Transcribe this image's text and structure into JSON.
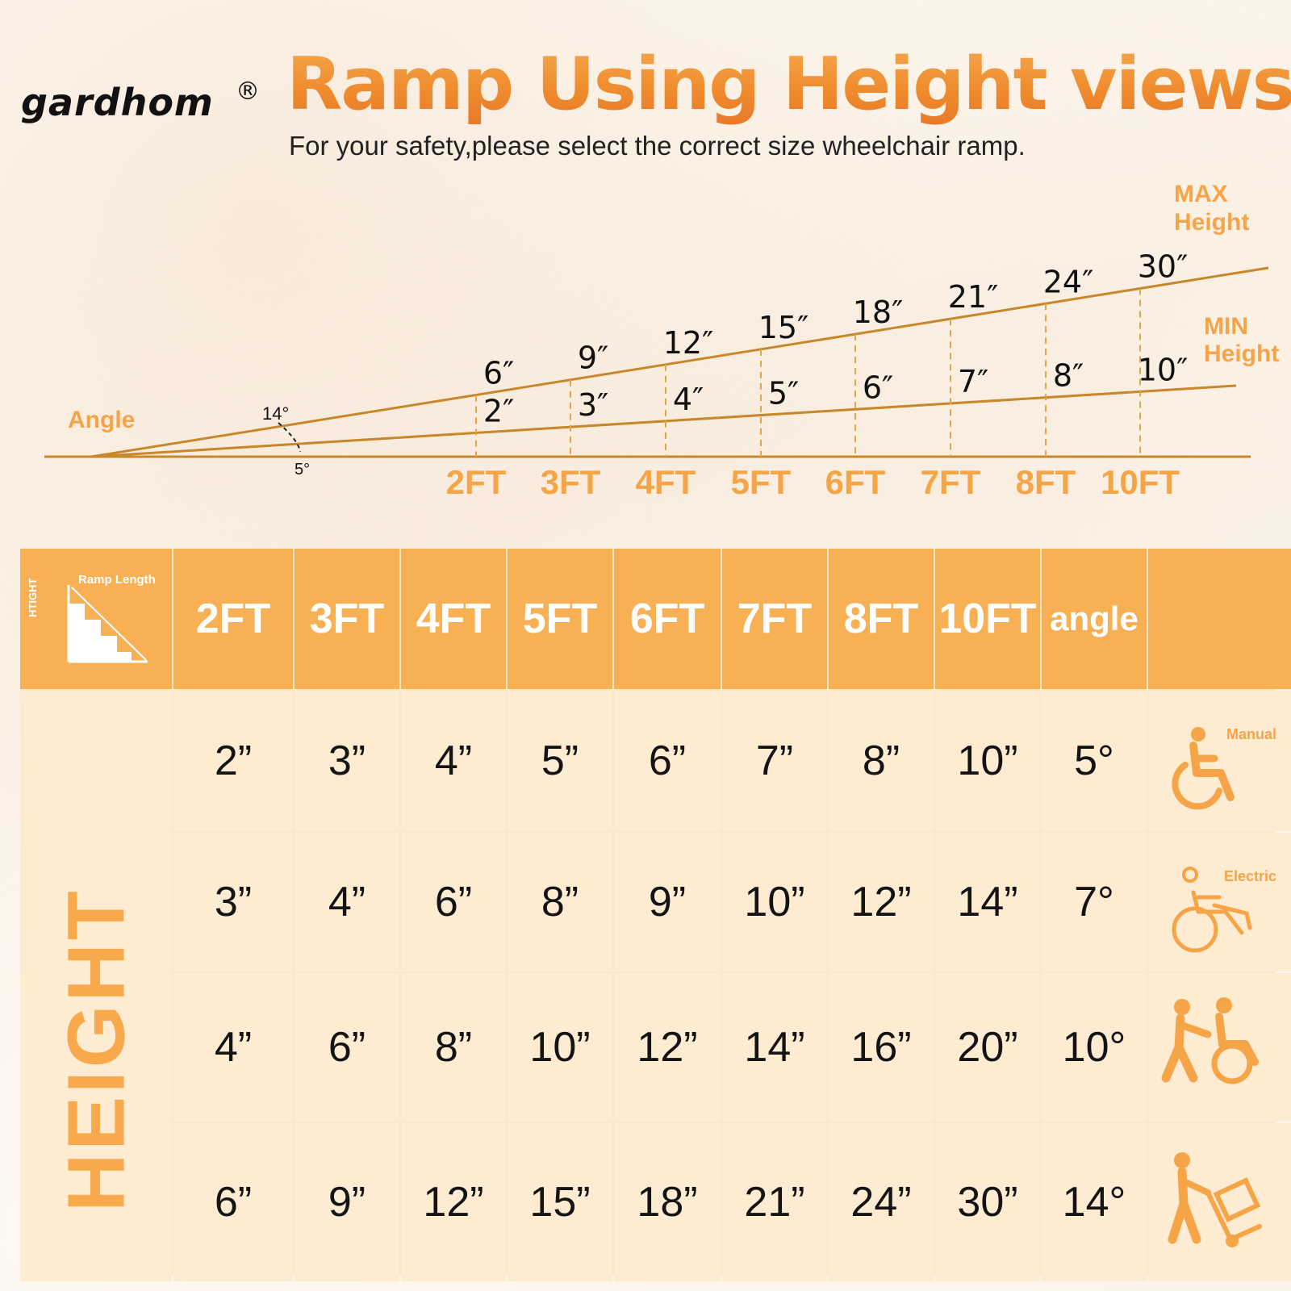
{
  "brand": {
    "name": "gardhom",
    "reg": "®"
  },
  "header": {
    "title": "Ramp Using Height views",
    "subtitle": "For your safety,please select the correct size wheelchair ramp."
  },
  "colors": {
    "accent": "#f8b055",
    "line": "#c8872b",
    "tint": "#fdebd2",
    "label": "#f5a548"
  },
  "chart_data": {
    "type": "line",
    "x": [
      "2FT",
      "3FT",
      "4FT",
      "5FT",
      "6FT",
      "7FT",
      "8FT",
      "10FT"
    ],
    "series": [
      {
        "name": "MAX Height",
        "values": [
          6,
          9,
          12,
          15,
          18,
          21,
          24,
          30
        ],
        "labels": [
          "6″",
          "9″",
          "12″",
          "15″",
          "18″",
          "21″",
          "24″",
          "30″"
        ]
      },
      {
        "name": "MIN Height",
        "values": [
          2,
          3,
          4,
          5,
          6,
          7,
          8,
          10
        ],
        "labels": [
          "2″",
          "3″",
          "4″",
          "5″",
          "6″",
          "7″",
          "8″",
          "10″"
        ]
      }
    ],
    "angle_label": "Angle",
    "angle_max": "14°",
    "angle_min": "5°",
    "max_label": [
      "MAX",
      "Height"
    ],
    "min_label": [
      "MIN",
      "Height"
    ]
  },
  "table": {
    "corner_length_label": "Ramp Length",
    "corner_height_label": "HTIGHT",
    "side_label": "HEIGHT",
    "columns": [
      "2FT",
      "3FT",
      "4FT",
      "5FT",
      "6FT",
      "7FT",
      "8FT",
      "10FT",
      "angle"
    ],
    "rows": [
      {
        "cells": [
          "2”",
          "3”",
          "4”",
          "5”",
          "6”",
          "7”",
          "8”",
          "10”",
          "5°"
        ],
        "tag": "Manual",
        "icon": "manual-wheelchair-icon"
      },
      {
        "cells": [
          "3”",
          "4”",
          "6”",
          "8”",
          "9”",
          "10”",
          "12”",
          "14”",
          "7°"
        ],
        "tag": "Electric",
        "icon": "electric-wheelchair-icon"
      },
      {
        "cells": [
          "4”",
          "6”",
          "8”",
          "10”",
          "12”",
          "14”",
          "16”",
          "20”",
          "10°"
        ],
        "tag": "",
        "icon": "assisted-wheelchair-icon"
      },
      {
        "cells": [
          "6”",
          "9”",
          "12”",
          "15”",
          "18”",
          "21”",
          "24”",
          "30”",
          "14°"
        ],
        "tag": "",
        "icon": "hand-truck-icon"
      }
    ]
  }
}
